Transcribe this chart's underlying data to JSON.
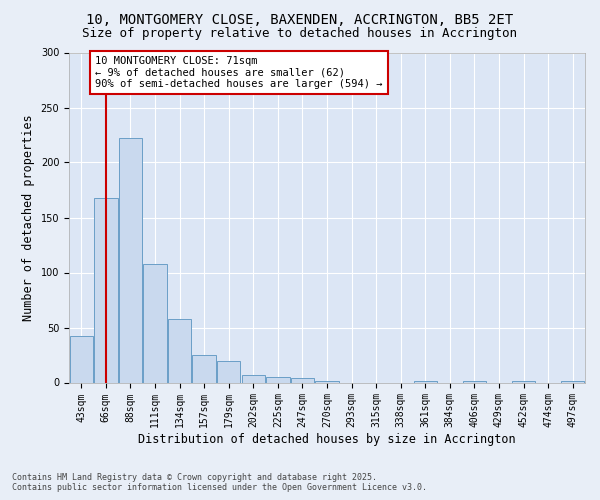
{
  "title_line1": "10, MONTGOMERY CLOSE, BAXENDEN, ACCRINGTON, BB5 2ET",
  "title_line2": "Size of property relative to detached houses in Accrington",
  "xlabel": "Distribution of detached houses by size in Accrington",
  "ylabel": "Number of detached properties",
  "categories": [
    "43sqm",
    "66sqm",
    "88sqm",
    "111sqm",
    "134sqm",
    "157sqm",
    "179sqm",
    "202sqm",
    "225sqm",
    "247sqm",
    "270sqm",
    "293sqm",
    "315sqm",
    "338sqm",
    "361sqm",
    "384sqm",
    "406sqm",
    "429sqm",
    "452sqm",
    "474sqm",
    "497sqm"
  ],
  "values": [
    42,
    168,
    222,
    108,
    58,
    25,
    20,
    7,
    5,
    4,
    1,
    0,
    0,
    0,
    1,
    0,
    1,
    0,
    1,
    0,
    1
  ],
  "bar_color": "#c9d9ee",
  "bar_edge_color": "#6a9ec7",
  "vline_x": 1,
  "vline_color": "#cc0000",
  "annotation_text": "10 MONTGOMERY CLOSE: 71sqm\n← 9% of detached houses are smaller (62)\n90% of semi-detached houses are larger (594) →",
  "annotation_box_color": "#ffffff",
  "annotation_box_edge": "#cc0000",
  "bg_color": "#e8eef7",
  "plot_bg_color": "#dce6f5",
  "footer_line1": "Contains HM Land Registry data © Crown copyright and database right 2025.",
  "footer_line2": "Contains public sector information licensed under the Open Government Licence v3.0.",
  "ylim": [
    0,
    300
  ],
  "yticks": [
    0,
    50,
    100,
    150,
    200,
    250,
    300
  ],
  "title_fontsize": 10,
  "subtitle_fontsize": 9,
  "axis_label_fontsize": 8.5,
  "tick_fontsize": 7,
  "annotation_fontsize": 7.5,
  "footer_fontsize": 6
}
